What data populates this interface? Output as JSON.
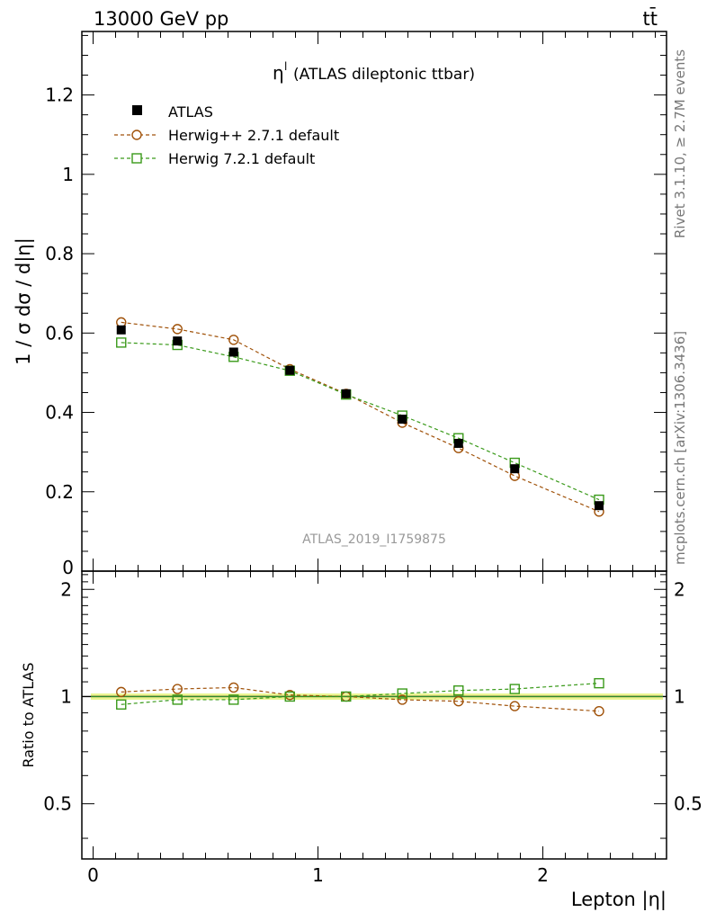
{
  "header": {
    "left": "13000 GeV pp",
    "right": "tt̄"
  },
  "side_labels": {
    "rivet": "Rivet 3.1.10, ≥ 2.7M events",
    "mcplots": "mcplots.cern.ch [arXiv:1306.3436]"
  },
  "chart_data": {
    "type": "scatter",
    "title": "(ATLAS dileptonic ttbar)",
    "title_symbol": "η",
    "title_superscript": "l",
    "watermark": "ATLAS_2019_I1759875",
    "xlabel": "Lepton |η|",
    "ylabel": "1 / σ  dσ / d|η|",
    "ratio_ylabel": "Ratio to ATLAS",
    "xlim": [
      -0.05,
      2.55
    ],
    "ylim": [
      0,
      1.36
    ],
    "ratio_ylim": [
      0.35,
      2.25
    ],
    "x_ticks": [
      "0",
      "1",
      "2"
    ],
    "y_ticks": [
      "0",
      "0.2",
      "0.4",
      "0.6",
      "0.8",
      "1",
      "1.2"
    ],
    "ratio_ticks": [
      "0.5",
      "1",
      "2"
    ],
    "x": [
      0.125,
      0.375,
      0.625,
      0.875,
      1.125,
      1.375,
      1.625,
      1.875,
      2.25
    ],
    "series": [
      {
        "name": "ATLAS",
        "color": "#000000",
        "marker": "filled-square",
        "values": [
          0.608,
          0.58,
          0.552,
          0.506,
          0.447,
          0.383,
          0.322,
          0.258,
          0.165
        ],
        "ratio": [
          1.0,
          1.0,
          1.0,
          1.0,
          1.0,
          1.0,
          1.0,
          1.0,
          1.0
        ]
      },
      {
        "name": "Herwig++ 2.7.1 default",
        "color": "#a0520a",
        "marker": "open-circle",
        "values": [
          0.627,
          0.61,
          0.583,
          0.509,
          0.447,
          0.374,
          0.31,
          0.24,
          0.15
        ],
        "ratio": [
          1.03,
          1.05,
          1.06,
          1.01,
          1.0,
          0.98,
          0.97,
          0.94,
          0.91
        ]
      },
      {
        "name": "Herwig 7.2.1 default",
        "color": "#3a9a1a",
        "marker": "open-square",
        "values": [
          0.576,
          0.57,
          0.54,
          0.505,
          0.445,
          0.392,
          0.335,
          0.273,
          0.18
        ],
        "ratio": [
          0.95,
          0.98,
          0.98,
          1.0,
          1.0,
          1.02,
          1.04,
          1.05,
          1.09
        ]
      }
    ]
  }
}
